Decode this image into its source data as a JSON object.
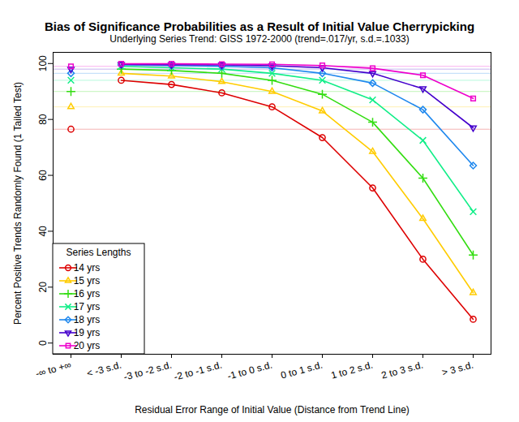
{
  "chart_data": {
    "type": "line",
    "title": "Bias of Significance Probabilities as a Result of Initial Value Cherrypicking",
    "subtitle": "Underlying Series Trend: GISS 1972-2000 (trend=.017/yr, s.d.=.1033)",
    "x_label": "Residual Error Range of Initial Value (Distance from Trend Line)",
    "y_label": "Percent Positive Trends Randomly Found (1 Tailed Test)",
    "legend_title": "Series Lengths",
    "legend": "bottom-left",
    "grid": false,
    "categories": [
      "-∞ to +∞",
      "< -3 s.d.",
      "-3 to -2 s.d.",
      "-2 to -1 s.d.",
      "-1 to 0 s.d.",
      "0 to 1 s.d.",
      "1 to 2 s.d.",
      "2 to 3 s.d.",
      "> 3 s.d."
    ],
    "ylim": [
      -4,
      104
    ],
    "yticks": [
      0,
      20,
      40,
      60,
      80,
      100
    ],
    "series": [
      {
        "name": "14 yrs",
        "color": "#dd0000",
        "marker": "circle",
        "values": [
          76.5,
          94,
          92.5,
          89.5,
          84.5,
          73.5,
          55.5,
          30,
          8.5
        ]
      },
      {
        "name": "15 yrs",
        "color": "#ffcc00",
        "marker": "triangle",
        "values": [
          84.5,
          96.5,
          95.5,
          93.5,
          90,
          83,
          68.5,
          44.5,
          18
        ]
      },
      {
        "name": "16 yrs",
        "color": "#33dd11",
        "marker": "plus",
        "values": [
          90,
          98,
          97.5,
          96.5,
          94,
          89,
          79,
          59,
          31.5
        ]
      },
      {
        "name": "17 yrs",
        "color": "#11ee88",
        "marker": "times",
        "values": [
          94,
          99,
          98.5,
          98,
          96.5,
          94,
          87,
          72.5,
          47
        ]
      },
      {
        "name": "18 yrs",
        "color": "#1f88ee",
        "marker": "diamond",
        "values": [
          96.5,
          99.5,
          99.3,
          99,
          98.5,
          96.5,
          93,
          83.5,
          63.5
        ]
      },
      {
        "name": "19 yrs",
        "color": "#4400cc",
        "marker": "triangle-down",
        "values": [
          98,
          99.7,
          99.6,
          99.5,
          99.2,
          98.5,
          96.5,
          91,
          77
        ]
      },
      {
        "name": "20 yrs",
        "color": "#ee00cc",
        "marker": "square",
        "values": [
          99,
          99.9,
          99.9,
          99.8,
          99.7,
          99.3,
          98.3,
          95.8,
          87.5
        ]
      }
    ]
  }
}
